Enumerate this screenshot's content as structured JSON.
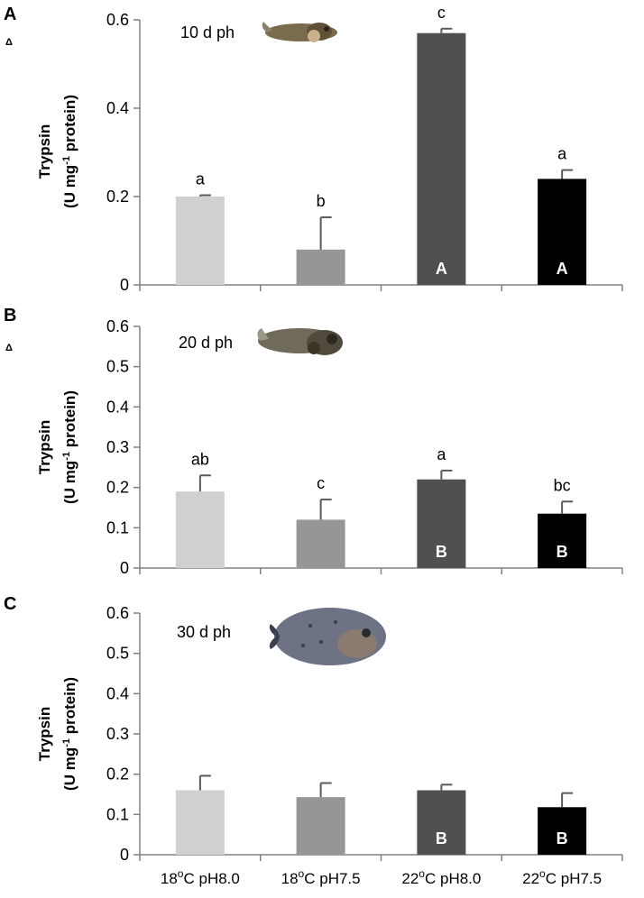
{
  "chart_data": {
    "type": "bar",
    "categories": [
      {
        "temp": "18",
        "sup": "o",
        "unit": "C pH8.0"
      },
      {
        "temp": "18",
        "sup": "o",
        "unit": "C pH7.5"
      },
      {
        "temp": "22",
        "sup": "o",
        "unit": "C pH8.0"
      },
      {
        "temp": "22",
        "sup": "o",
        "unit": "C pH7.5"
      }
    ],
    "bar_colors": [
      "#d0d0d0",
      "#969696",
      "#505050",
      "#000000"
    ],
    "ylabel": {
      "line1": "Trypsin",
      "line2_pre": "(U mg",
      "line2_sup": "-1",
      "line2_post": " protein)"
    },
    "panels": [
      {
        "letter": "A",
        "mark": "Δ",
        "stage": "10 d ph",
        "image_icon": "fish-larva-10dph-icon",
        "ylim": [
          0,
          0.6
        ],
        "ticks": [
          {
            "v": 0,
            "label": "0"
          },
          {
            "v": 0.2,
            "label": "0.2"
          },
          {
            "v": 0.4,
            "label": "0.4"
          },
          {
            "v": 0.6,
            "label": "0.6"
          }
        ],
        "values": [
          0.2,
          0.08,
          0.57,
          0.24
        ],
        "errors": [
          0.003,
          0.073,
          0.01,
          0.02
        ],
        "sig": [
          "a",
          "b",
          "c",
          "a"
        ],
        "inbar": [
          "",
          "",
          "A",
          "A"
        ]
      },
      {
        "letter": "B",
        "mark": "Δ",
        "stage": "20 d ph",
        "image_icon": "fish-larva-20dph-icon",
        "ylim": [
          0,
          0.6
        ],
        "ticks": [
          {
            "v": 0,
            "label": "0"
          },
          {
            "v": 0.1,
            "label": "0.1"
          },
          {
            "v": 0.2,
            "label": "0.2"
          },
          {
            "v": 0.3,
            "label": "0.3"
          },
          {
            "v": 0.4,
            "label": "0.4"
          },
          {
            "v": 0.5,
            "label": "0.5"
          },
          {
            "v": 0.6,
            "label": "0.6"
          }
        ],
        "values": [
          0.19,
          0.12,
          0.22,
          0.135
        ],
        "errors": [
          0.04,
          0.05,
          0.022,
          0.03
        ],
        "sig": [
          "ab",
          "c",
          "a",
          "bc"
        ],
        "inbar": [
          "",
          "",
          "B",
          "B"
        ]
      },
      {
        "letter": "C",
        "mark": "",
        "stage": "30 d ph",
        "image_icon": "fish-juvenile-30dph-icon",
        "ylim": [
          0,
          0.6
        ],
        "ticks": [
          {
            "v": 0,
            "label": "0"
          },
          {
            "v": 0.1,
            "label": "0.1"
          },
          {
            "v": 0.2,
            "label": "0.2"
          },
          {
            "v": 0.3,
            "label": "0.3"
          },
          {
            "v": 0.4,
            "label": "0.4"
          },
          {
            "v": 0.5,
            "label": "0.5"
          },
          {
            "v": 0.6,
            "label": "0.6"
          }
        ],
        "values": [
          0.16,
          0.143,
          0.16,
          0.118
        ],
        "errors": [
          0.036,
          0.035,
          0.014,
          0.035
        ],
        "sig": [
          "",
          "",
          "",
          ""
        ],
        "inbar": [
          "",
          "",
          "B",
          "B"
        ]
      }
    ]
  }
}
